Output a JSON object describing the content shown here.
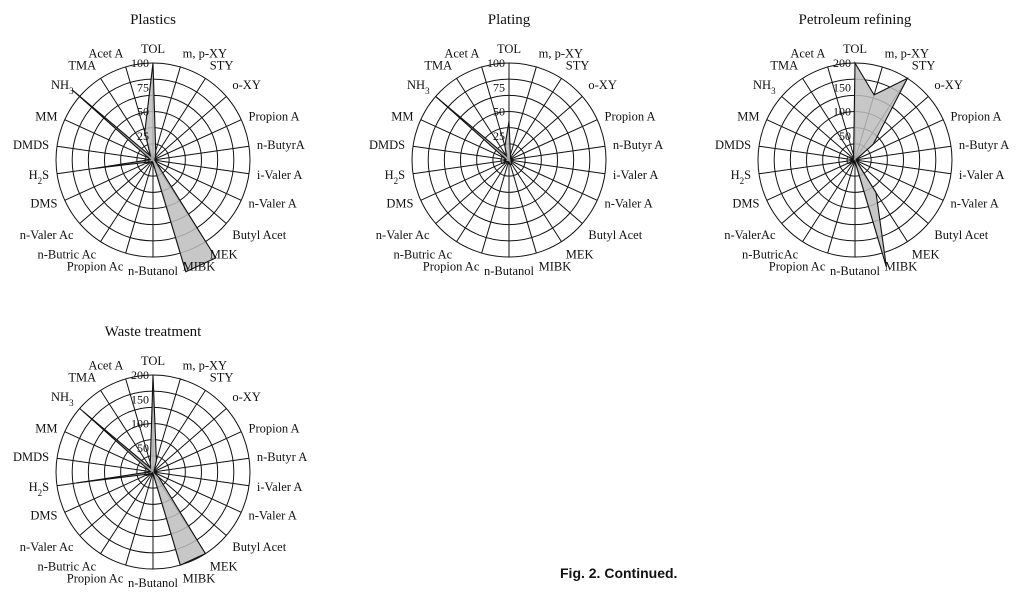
{
  "caption": "Fig. 2. Continued.",
  "chart_data": [
    {
      "type": "radar",
      "title": "Plastics",
      "categories": [
        "TOL",
        "m, p-XY",
        "STY",
        "o-XY",
        "Propion A",
        "n-ButyrA",
        "i-Valer A",
        "n-Valer A",
        "Butyl Acet",
        "MEK",
        "MIBK",
        "n-Butanol",
        "Propion Ac",
        "n-Butric Ac",
        "n-Valer Ac",
        "DMS",
        "H2S",
        "DMDS",
        "MM",
        "NH3",
        "TMA",
        "Acet A"
      ],
      "rmax": 100,
      "ticks": [
        25,
        50,
        75,
        100
      ],
      "tick_labels": [
        "25",
        "50",
        "75",
        "100"
      ],
      "values": [
        100,
        10,
        5,
        3,
        2,
        2,
        2,
        3,
        5,
        120,
        120,
        3,
        2,
        2,
        3,
        5,
        60,
        3,
        5,
        110,
        5,
        30
      ]
    },
    {
      "type": "radar",
      "title": "Plating",
      "categories": [
        "TOL",
        "m, p-XY",
        "STY",
        "o-XY",
        "Propion A",
        "n-Butyr A",
        "i-Valer A",
        "n-Valer A",
        "Butyl Acet",
        "MEK",
        "MIBK",
        "n-Butanol",
        "Propion Ac",
        "n-Butric Ac",
        "n-Valer Ac",
        "DMS",
        "H2S",
        "DMDS",
        "MM",
        "NH3",
        "TMA",
        "Acet A"
      ],
      "rmax": 100,
      "ticks": [
        25,
        50,
        75,
        100
      ],
      "tick_labels": [
        "25",
        "50",
        "75",
        "100"
      ],
      "values": [
        40,
        5,
        3,
        2,
        2,
        2,
        2,
        2,
        3,
        5,
        5,
        2,
        2,
        2,
        3,
        3,
        5,
        3,
        5,
        100,
        5,
        15
      ]
    },
    {
      "type": "radar",
      "title": "Petroleum refining",
      "categories": [
        "TOL",
        "m, p-XY",
        "STY",
        "o-XY",
        "Propion A",
        "n-Butyr A",
        "i-Valer A",
        "n-Valer A",
        "Butyl Acet",
        "MEK",
        "MIBK",
        "n-Butanol",
        "Propion Ac",
        "n-ButricAc",
        "n-ValerAc",
        "DMS",
        "H2S",
        "DMDS",
        "MM",
        "NH3",
        "TMA",
        "Acet A"
      ],
      "rmax": 200,
      "ticks": [
        50,
        100,
        150,
        200
      ],
      "tick_labels": [
        "50",
        "100",
        "150",
        "200"
      ],
      "values": [
        200,
        140,
        200,
        50,
        3,
        2,
        2,
        3,
        5,
        80,
        230,
        3,
        2,
        2,
        3,
        5,
        5,
        3,
        5,
        5,
        5,
        10
      ]
    },
    {
      "type": "radar",
      "title": "Waste treatment",
      "categories": [
        "TOL",
        "m, p-XY",
        "STY",
        "o-XY",
        "Propion A",
        "n-Butyr A",
        "i-Valer A",
        "n-Valer A",
        "Butyl Acet",
        "MEK",
        "MIBK",
        "n-Butanol",
        "Propion Ac",
        "n-Butric Ac",
        "n-Valer Ac",
        "DMS",
        "H2S",
        "DMDS",
        "MM",
        "NH3",
        "TMA",
        "Acet A"
      ],
      "rmax": 200,
      "ticks": [
        50,
        100,
        150,
        200
      ],
      "tick_labels": [
        "50",
        "100",
        "150",
        "200"
      ],
      "values": [
        200,
        25,
        5,
        3,
        3,
        2,
        2,
        3,
        15,
        200,
        200,
        3,
        3,
        2,
        5,
        10,
        160,
        5,
        10,
        190,
        10,
        20
      ]
    }
  ]
}
